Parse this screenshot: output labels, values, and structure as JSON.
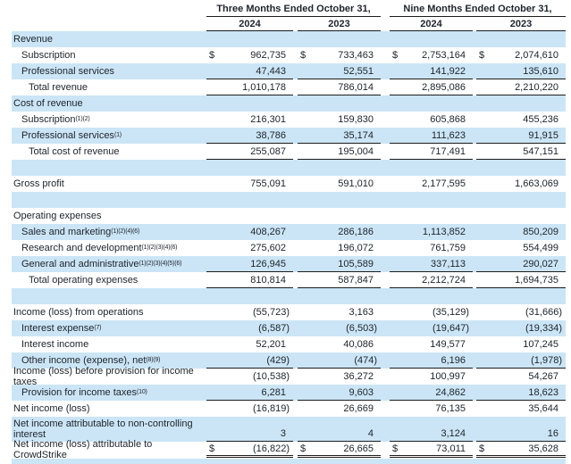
{
  "colors": {
    "row_shade": "#cbe5f6",
    "border": "#1c1c1c",
    "text": "#20262e",
    "background": "#ffffff"
  },
  "table": {
    "header": {
      "groups": [
        {
          "title": "Three Months Ended October 31,",
          "cols": [
            "2024",
            "2023"
          ]
        },
        {
          "title": "Nine Months Ended October 31,",
          "cols": [
            "2024",
            "2023"
          ]
        }
      ]
    },
    "currency_symbol": "$",
    "rows": [
      {
        "label": "Revenue",
        "indent": 0,
        "shade": true,
        "values": [
          "",
          "",
          "",
          ""
        ]
      },
      {
        "label": "Subscription",
        "indent": 1,
        "shade": false,
        "dollar": true,
        "values": [
          "962,735",
          "733,463",
          "2,753,164",
          "2,074,610"
        ]
      },
      {
        "label": "Professional services",
        "indent": 1,
        "shade": true,
        "underline": "single",
        "values": [
          "47,443",
          "52,551",
          "141,922",
          "135,610"
        ]
      },
      {
        "label": "Total revenue",
        "indent": 2,
        "shade": false,
        "underline": "single",
        "values": [
          "1,010,178",
          "786,014",
          "2,895,086",
          "2,210,220"
        ]
      },
      {
        "label": "Cost of revenue",
        "indent": 0,
        "shade": true,
        "values": [
          "",
          "",
          "",
          ""
        ]
      },
      {
        "label": "Subscription",
        "sup": "(1)(2)",
        "indent": 1,
        "shade": false,
        "values": [
          "216,301",
          "159,830",
          "605,868",
          "455,236"
        ]
      },
      {
        "label": "Professional services",
        "sup": "(1)",
        "indent": 1,
        "shade": true,
        "underline": "single",
        "values": [
          "38,786",
          "35,174",
          "111,623",
          "91,915"
        ]
      },
      {
        "label": "Total cost of revenue",
        "indent": 2,
        "shade": false,
        "underline": "single",
        "values": [
          "255,087",
          "195,004",
          "717,491",
          "547,151"
        ]
      },
      {
        "blank": true,
        "shade": true
      },
      {
        "label": "Gross profit",
        "indent": 0,
        "shade": false,
        "values": [
          "755,091",
          "591,010",
          "2,177,595",
          "1,663,069"
        ]
      },
      {
        "blank": true,
        "shade": true
      },
      {
        "label": "Operating expenses",
        "indent": 0,
        "shade": false,
        "values": [
          "",
          "",
          "",
          ""
        ]
      },
      {
        "label": "Sales and marketing",
        "sup": "(1)(2)(4)(6)",
        "indent": 1,
        "shade": true,
        "values": [
          "408,267",
          "286,186",
          "1,113,852",
          "850,209"
        ]
      },
      {
        "label": "Research and development",
        "sup": "(1)(2)(3)(4)(6)",
        "indent": 1,
        "shade": false,
        "values": [
          "275,602",
          "196,072",
          "761,759",
          "554,499"
        ]
      },
      {
        "label": "General and administrative",
        "sup": "(1)(2)(3)(4)(5)(6)",
        "indent": 1,
        "shade": true,
        "underline": "single",
        "values": [
          "126,945",
          "105,589",
          "337,113",
          "290,027"
        ]
      },
      {
        "label": "Total operating expenses",
        "indent": 2,
        "shade": false,
        "underline": "single",
        "values": [
          "810,814",
          "587,847",
          "2,212,724",
          "1,694,735"
        ]
      },
      {
        "blank": true,
        "shade": true
      },
      {
        "label": "Income (loss) from operations",
        "indent": 0,
        "shade": false,
        "values": [
          "(55,723)",
          "3,163",
          "(35,129)",
          "(31,666)"
        ]
      },
      {
        "label": "Interest expense",
        "sup": "(7)",
        "indent": 1,
        "shade": true,
        "values": [
          "(6,587)",
          "(6,503)",
          "(19,647)",
          "(19,334)"
        ]
      },
      {
        "label": "Interest income",
        "indent": 1,
        "shade": false,
        "values": [
          "52,201",
          "40,086",
          "149,577",
          "107,245"
        ]
      },
      {
        "label": "Other income (expense), net",
        "sup": "(8)(9)",
        "indent": 1,
        "shade": true,
        "underline": "single",
        "values": [
          "(429)",
          "(474)",
          "6,196",
          "(1,978)"
        ]
      },
      {
        "label": "Income (loss) before provision for income taxes",
        "indent": 0,
        "shade": false,
        "values": [
          "(10,538)",
          "36,272",
          "100,997",
          "54,267"
        ]
      },
      {
        "label": "Provision for income taxes",
        "sup": "(10)",
        "indent": 1,
        "shade": true,
        "underline": "single",
        "values": [
          "6,281",
          "9,603",
          "24,862",
          "18,623"
        ]
      },
      {
        "label": "Net income (loss)",
        "indent": 0,
        "shade": false,
        "values": [
          "(16,819)",
          "26,669",
          "76,135",
          "35,644"
        ]
      },
      {
        "label": "Net income attributable to non-controlling interest",
        "indent": 0,
        "shade": true,
        "tall": true,
        "underline": "single",
        "values": [
          "3",
          "4",
          "3,124",
          "16"
        ]
      },
      {
        "label": "Net income (loss) attributable to CrowdStrike",
        "indent": 0,
        "shade": false,
        "dollar": true,
        "underline": "double",
        "values": [
          "(16,822)",
          "26,665",
          "73,011",
          "35,628"
        ]
      },
      {
        "blank": true,
        "shade": true,
        "strip": true
      }
    ]
  }
}
